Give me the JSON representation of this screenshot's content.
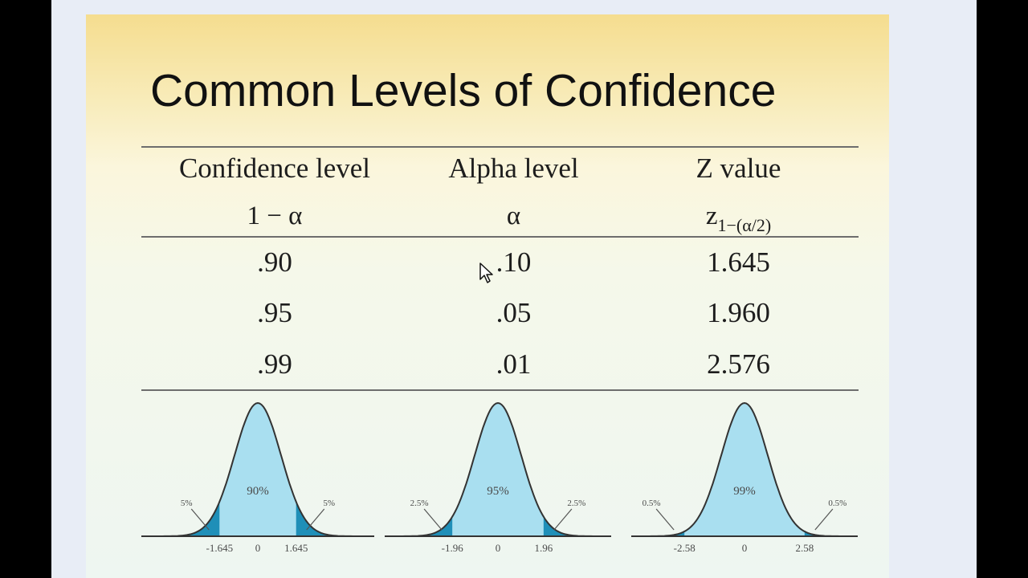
{
  "slide": {
    "title": "Common Levels of Confidence",
    "table": {
      "headers": [
        "Confidence level",
        "Alpha level",
        "Z value"
      ],
      "symbols": {
        "col1": "1 − α",
        "col2": "α",
        "col3_main": "z",
        "col3_sub": "1−(α/2)"
      },
      "rows": [
        {
          "confidence": ".90",
          "alpha": ".10",
          "z": "1.645"
        },
        {
          "confidence": ".95",
          "alpha": ".05",
          "z": "1.960"
        },
        {
          "confidence": ".99",
          "alpha": ".01",
          "z": "2.576"
        }
      ]
    },
    "curves": [
      {
        "center_label": "90%",
        "tail_left": "5%",
        "tail_right": "5%",
        "tick_left": "-1.645",
        "tick_center": "0",
        "tick_right": "1.645",
        "z": 1.645
      },
      {
        "center_label": "95%",
        "tail_left": "2.5%",
        "tail_right": "2.5%",
        "tick_left": "-1.96",
        "tick_center": "0",
        "tick_right": "1.96",
        "z": 1.96
      },
      {
        "center_label": "99%",
        "tail_left": "0.5%",
        "tail_right": "0.5%",
        "tick_left": "-2.58",
        "tick_center": "0",
        "tick_right": "2.58",
        "z": 2.58
      }
    ],
    "colors": {
      "curve_fill": "#a9dff0",
      "tail_fill": "#1f8fb8",
      "line": "#333333"
    }
  }
}
